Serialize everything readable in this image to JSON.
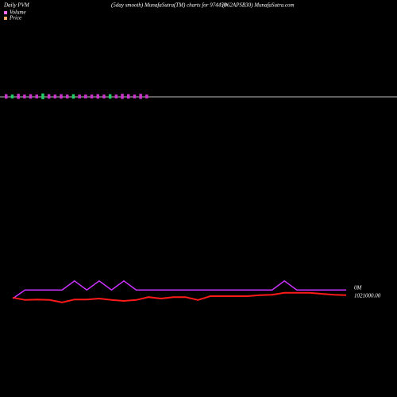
{
  "chart_data": {
    "type": "line",
    "title": "Daily PVM",
    "subtitle": "(5day smooth) MunafaSutra(TM) charts for 974450",
    "site": "(962APSB30) MunafaSutra.com",
    "volume": {
      "name": "Volume",
      "legend_color": "#ff66ff",
      "values": [
        7,
        6,
        8,
        6,
        7,
        6,
        9,
        7,
        6,
        7,
        6,
        7,
        6,
        6,
        6,
        7,
        6,
        7,
        6,
        8,
        7,
        6,
        8,
        6
      ],
      "colors": [
        "#cc33cc",
        "#22cc66",
        "#cc33cc",
        "#cc33cc",
        "#cc33cc",
        "#cc33cc",
        "#22cc66",
        "#cc33cc",
        "#cc33cc",
        "#cc33cc",
        "#cc33cc",
        "#22cc66",
        "#cc33cc",
        "#cc33cc",
        "#cc33cc",
        "#cc33cc",
        "#cc33cc",
        "#22cc66",
        "#cc33cc",
        "#cc33cc",
        "#cc33cc",
        "#cc33cc",
        "#cc33cc",
        "#cc33cc"
      ],
      "ylim": [
        0,
        10
      ]
    },
    "legend_price": {
      "name": "Price",
      "color": "#ffaa66"
    },
    "axis_label_volume": "0M",
    "axis_label_price": "1021000.00",
    "x": [
      0,
      1,
      2,
      3,
      4,
      5,
      6,
      7,
      8,
      9,
      10,
      11,
      12,
      13,
      14,
      15,
      16,
      17,
      18,
      19,
      20,
      21,
      22,
      23,
      24,
      25,
      26,
      27
    ],
    "xlim": [
      0,
      27
    ],
    "ylim": [
      0,
      100
    ],
    "series": [
      {
        "name": "Volume smooth",
        "color": "#cc33ff",
        "values": [
          40,
          58,
          58,
          58,
          58,
          77,
          58,
          77,
          58,
          77,
          58,
          58,
          58,
          58,
          58,
          58,
          58,
          58,
          58,
          58,
          58,
          58,
          77,
          58,
          58,
          58,
          58,
          58
        ]
      },
      {
        "name": "Price smooth",
        "color": "#ff1a1a",
        "values": [
          42,
          37,
          38,
          37,
          32,
          38,
          38,
          40,
          37,
          35,
          37,
          43,
          40,
          43,
          43,
          37,
          45,
          45,
          45,
          45,
          47,
          48,
          52,
          52,
          52,
          50,
          48,
          47
        ]
      }
    ]
  }
}
